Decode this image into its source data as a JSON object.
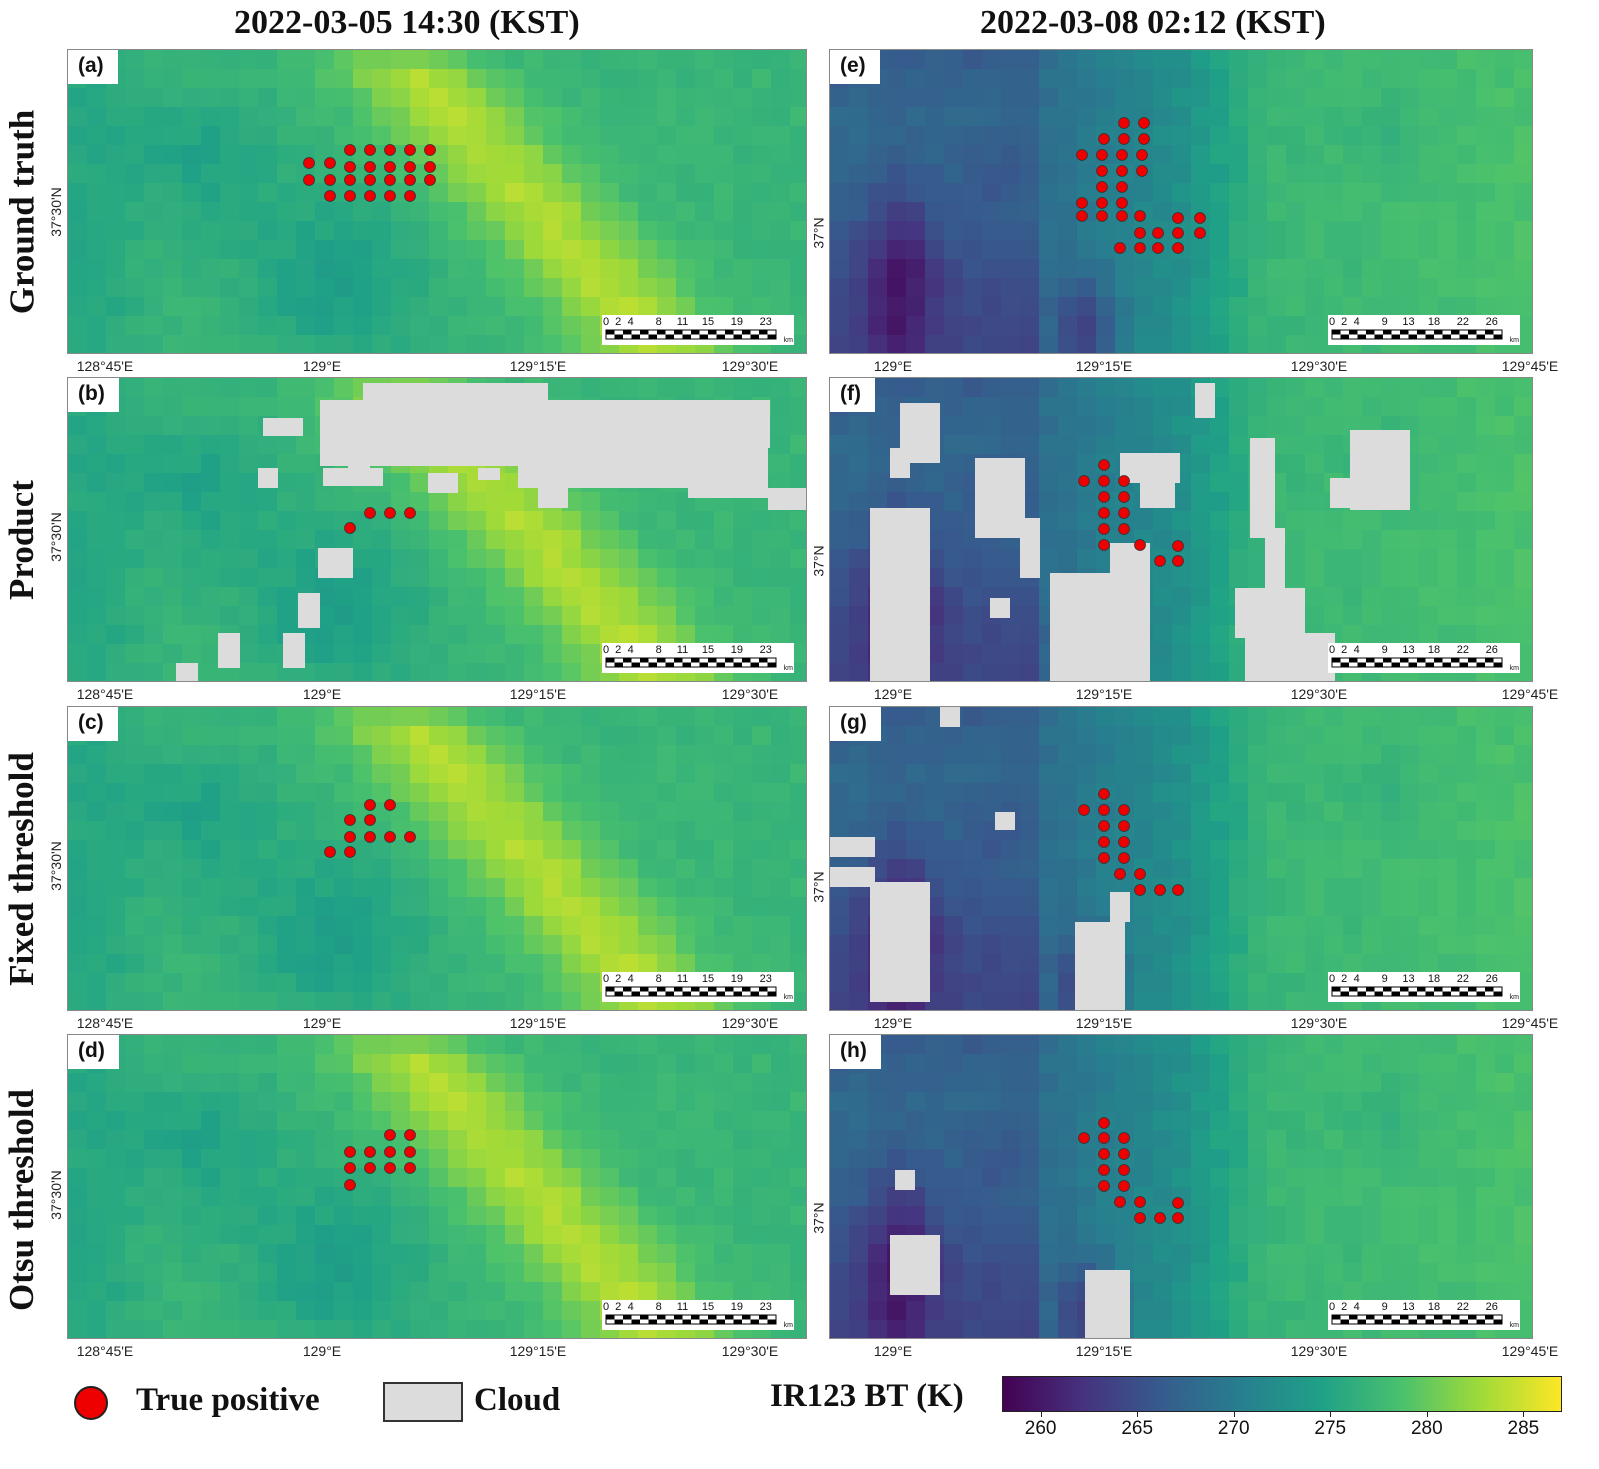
{
  "columns": [
    {
      "title": "2022-03-05 14:30 (KST)",
      "lat_label": "37°30'N",
      "lon_labels": [
        "128°45'E",
        "129°E",
        "129°15'E",
        "129°30'E"
      ],
      "scale_ticks": [
        "0",
        "2",
        "4",
        "8",
        "11",
        "15",
        "19",
        "23"
      ],
      "scale_unit": "km"
    },
    {
      "title": "2022-03-08 02:12 (KST)",
      "lat_label": "37°N",
      "lon_labels": [
        "129°E",
        "129°15'E",
        "129°30'E",
        "129°45'E"
      ],
      "scale_ticks": [
        "0",
        "2",
        "4",
        "9",
        "13",
        "18",
        "22",
        "26"
      ],
      "scale_unit": "km"
    }
  ],
  "rows": [
    {
      "label": "Ground truth",
      "panels": [
        "(a)",
        "(e)"
      ]
    },
    {
      "label": "Product",
      "panels": [
        "(b)",
        "(f)"
      ]
    },
    {
      "label": "Fixed threshold",
      "panels": [
        "(c)",
        "(g)"
      ]
    },
    {
      "label": "Otsu threshold",
      "panels": [
        "(d)",
        "(h)"
      ]
    }
  ],
  "legend": {
    "true_positive": "True positive",
    "cloud": "Cloud"
  },
  "colorbar": {
    "title": "IR123 BT (K)",
    "min": 258,
    "max": 287,
    "ticks": [
      "260",
      "265",
      "270",
      "275",
      "280",
      "285"
    ],
    "colormap": "viridis"
  },
  "colors": {
    "true_positive": "#ee0000",
    "cloud": "#dcdcdc"
  }
}
